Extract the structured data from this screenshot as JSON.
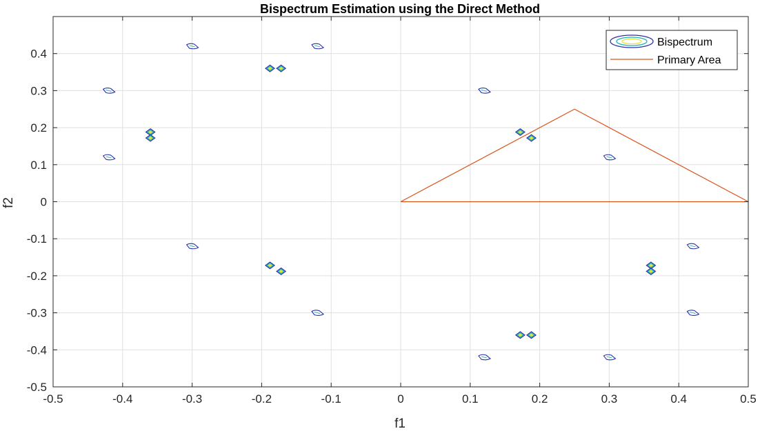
{
  "chart_data": {
    "type": "contour",
    "title": "Bispectrum Estimation using the Direct Method",
    "xlabel": "f1",
    "ylabel": "f2",
    "xlim": [
      -0.5,
      0.5
    ],
    "ylim": [
      -0.5,
      0.5
    ],
    "xticks": [
      -0.5,
      -0.4,
      -0.3,
      -0.2,
      -0.1,
      0,
      0.1,
      0.2,
      0.3,
      0.4,
      0.5
    ],
    "yticks": [
      -0.5,
      -0.4,
      -0.3,
      -0.2,
      -0.1,
      0,
      0.1,
      0.2,
      0.3,
      0.4
    ],
    "xtick_labels": [
      "-0.5",
      "-0.4",
      "-0.3",
      "-0.2",
      "-0.1",
      "0",
      "0.1",
      "0.2",
      "0.3",
      "0.4",
      "0.5"
    ],
    "ytick_labels": [
      "-0.5",
      "-0.4",
      "-0.3",
      "-0.2",
      "-0.1",
      "0",
      "0.1",
      "0.2",
      "0.3",
      "0.4"
    ],
    "grid": true,
    "legend_position": "top-right",
    "series": [
      {
        "name": "Bispectrum",
        "kind": "contour",
        "colors": [
          "#2d2fa8",
          "#18b6b8",
          "#e8e23a"
        ],
        "strong_peaks": [
          [
            0.172,
            0.188
          ],
          [
            0.188,
            0.172
          ],
          [
            -0.188,
            0.36
          ],
          [
            -0.172,
            0.36
          ],
          [
            -0.36,
            0.188
          ],
          [
            -0.36,
            0.172
          ],
          [
            -0.188,
            -0.172
          ],
          [
            -0.172,
            -0.188
          ],
          [
            0.36,
            -0.172
          ],
          [
            0.36,
            -0.188
          ],
          [
            0.172,
            -0.36
          ],
          [
            0.188,
            -0.36
          ]
        ],
        "weak_peaks": [
          [
            -0.3,
            0.42
          ],
          [
            -0.12,
            0.42
          ],
          [
            -0.42,
            0.3
          ],
          [
            0.12,
            0.3
          ],
          [
            -0.42,
            0.12
          ],
          [
            0.3,
            0.12
          ],
          [
            -0.3,
            -0.12
          ],
          [
            0.42,
            -0.12
          ],
          [
            -0.12,
            -0.3
          ],
          [
            0.42,
            -0.3
          ],
          [
            0.12,
            -0.42
          ],
          [
            0.3,
            -0.42
          ]
        ]
      },
      {
        "name": "Primary Area",
        "kind": "line",
        "color": "#d95319",
        "x": [
          0,
          0.25,
          0.5,
          0
        ],
        "y": [
          0,
          0.25,
          0,
          0
        ]
      }
    ]
  }
}
